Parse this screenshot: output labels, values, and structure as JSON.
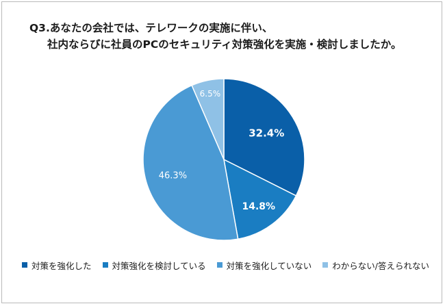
{
  "chart_data": {
    "type": "pie",
    "title_lines": [
      "Q3.あなたの会社では、テレワークの実施に伴い、",
      "社内ならびに社員のPCのセキュリティ対策強化を実施・検討しましたか。"
    ],
    "slices": [
      {
        "name": "対策を強化した",
        "value": 32.4,
        "label": "32.4%",
        "color": "#0a5fa8"
      },
      {
        "name": "対策強化を検討している",
        "value": 14.8,
        "label": "14.8%",
        "color": "#1a7dc2"
      },
      {
        "name": "対策を強化していない",
        "value": 46.3,
        "label": "46.3%",
        "color": "#4a9ad4"
      },
      {
        "name": "わからない/答えられない",
        "value": 6.5,
        "label": "6.5%",
        "color": "#8fc1e6"
      }
    ],
    "legend_position": "bottom",
    "start_angle": "12 o'clock",
    "direction": "clockwise"
  }
}
